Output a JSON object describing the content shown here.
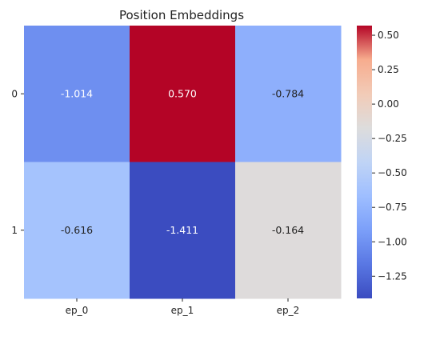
{
  "chart_data": {
    "type": "heatmap",
    "title": "Position Embeddings",
    "xlabel": "",
    "ylabel": "",
    "x_categories": [
      "ep_0",
      "ep_1",
      "ep_2"
    ],
    "y_categories": [
      "0",
      "1"
    ],
    "values": [
      [
        -1.014,
        0.57,
        -0.784
      ],
      [
        -0.616,
        -1.411,
        -0.164
      ]
    ],
    "cell_labels": [
      [
        "-1.014",
        "0.570",
        "-0.784"
      ],
      [
        "-0.616",
        "-1.411",
        "-0.164"
      ]
    ],
    "colormap": "coolwarm",
    "colorbar": {
      "vmin": -1.411,
      "vmax": 0.57,
      "ticks": [
        0.5,
        0.25,
        0.0,
        -0.25,
        -0.5,
        -0.75,
        -1.0,
        -1.25
      ],
      "tick_labels": [
        "0.50",
        "0.25",
        "0.00",
        "−0.25",
        "−0.50",
        "−0.75",
        "−1.00",
        "−1.25"
      ],
      "placement": "right"
    },
    "grid": false
  }
}
